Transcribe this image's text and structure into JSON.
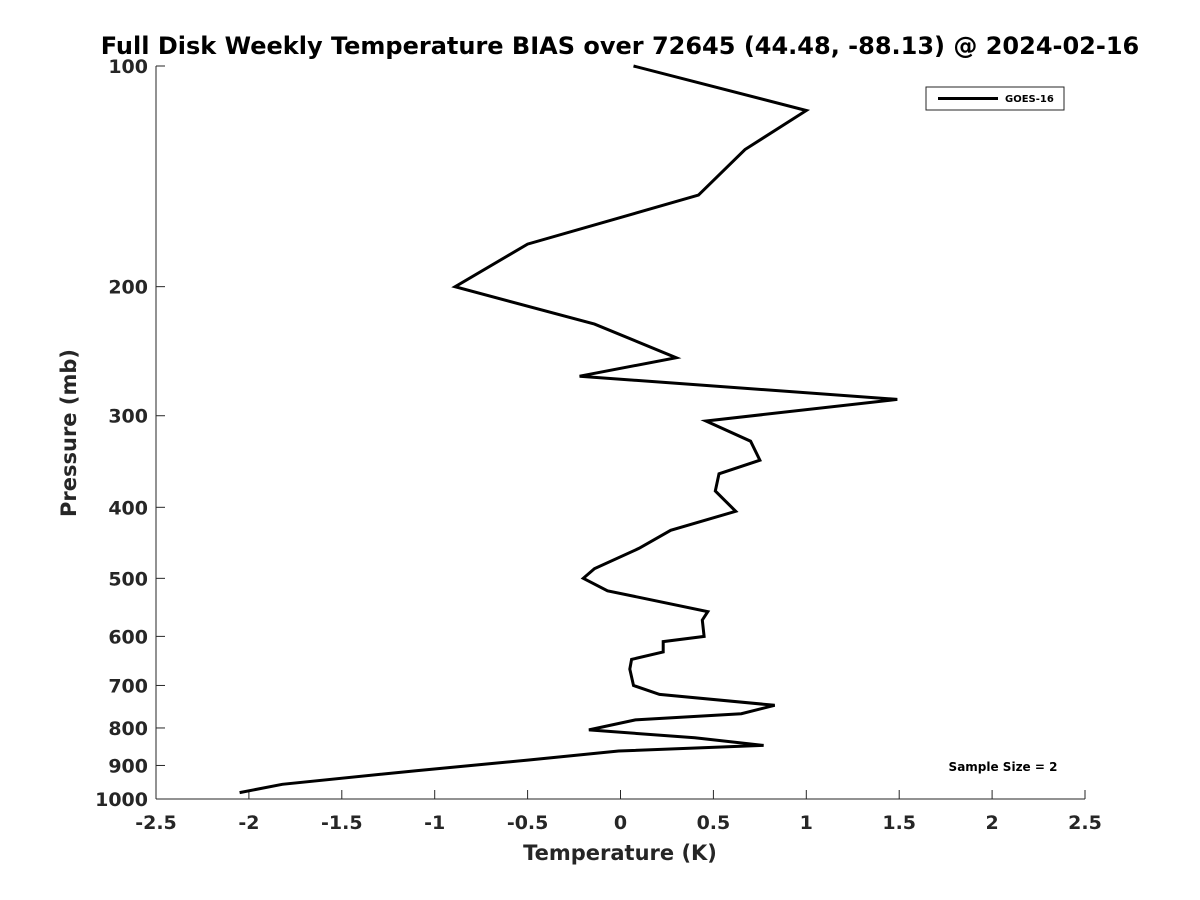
{
  "chart_data": {
    "type": "line",
    "title": "Full Disk Weekly Temperature BIAS over 72645 (44.48, -88.13) @ 2024-02-16",
    "xlabel": "Temperature (K)",
    "ylabel": "Pressure (mb)",
    "xlim": [
      -2.5,
      2.5
    ],
    "ylim": [
      100,
      1000
    ],
    "y_scale": "log",
    "y_reversed": true,
    "x_ticks": [
      -2.5,
      -2,
      -1.5,
      -1,
      -0.5,
      0,
      0.5,
      1,
      1.5,
      2,
      2.5
    ],
    "x_tick_labels": [
      "-2.5",
      "-2",
      "-1.5",
      "-1",
      "-0.5",
      "0",
      "0.5",
      "1",
      "1.5",
      "2",
      "2.5"
    ],
    "y_ticks": [
      100,
      200,
      300,
      400,
      500,
      600,
      700,
      800,
      900,
      1000
    ],
    "y_tick_labels": [
      "100",
      "200",
      "300",
      "400",
      "500",
      "600",
      "700",
      "800",
      "900",
      "1000"
    ],
    "grid": false,
    "legend_position": "top-right",
    "series": [
      {
        "name": "GOES-16",
        "color": "#000000",
        "points": [
          {
            "x": 0.07,
            "p": 100
          },
          {
            "x": 1.0,
            "p": 115
          },
          {
            "x": 0.67,
            "p": 130
          },
          {
            "x": 0.42,
            "p": 150
          },
          {
            "x": -0.5,
            "p": 175
          },
          {
            "x": -0.89,
            "p": 200
          },
          {
            "x": -0.14,
            "p": 225
          },
          {
            "x": 0.3,
            "p": 250
          },
          {
            "x": -0.22,
            "p": 265
          },
          {
            "x": 1.49,
            "p": 285
          },
          {
            "x": 0.46,
            "p": 305
          },
          {
            "x": 0.7,
            "p": 325
          },
          {
            "x": 0.75,
            "p": 345
          },
          {
            "x": 0.53,
            "p": 360
          },
          {
            "x": 0.51,
            "p": 380
          },
          {
            "x": 0.62,
            "p": 405
          },
          {
            "x": 0.27,
            "p": 430
          },
          {
            "x": 0.1,
            "p": 455
          },
          {
            "x": -0.14,
            "p": 485
          },
          {
            "x": -0.2,
            "p": 500
          },
          {
            "x": -0.07,
            "p": 520
          },
          {
            "x": 0.47,
            "p": 555
          },
          {
            "x": 0.44,
            "p": 570
          },
          {
            "x": 0.45,
            "p": 600
          },
          {
            "x": 0.23,
            "p": 610
          },
          {
            "x": 0.23,
            "p": 630
          },
          {
            "x": 0.06,
            "p": 645
          },
          {
            "x": 0.05,
            "p": 665
          },
          {
            "x": 0.07,
            "p": 700
          },
          {
            "x": 0.21,
            "p": 720
          },
          {
            "x": 0.83,
            "p": 745
          },
          {
            "x": 0.65,
            "p": 765
          },
          {
            "x": 0.08,
            "p": 780
          },
          {
            "x": -0.17,
            "p": 805
          },
          {
            "x": 0.4,
            "p": 825
          },
          {
            "x": 0.77,
            "p": 845
          },
          {
            "x": -0.01,
            "p": 860
          },
          {
            "x": -0.5,
            "p": 885
          },
          {
            "x": -1.1,
            "p": 915
          },
          {
            "x": -1.82,
            "p": 955
          },
          {
            "x": -2.05,
            "p": 980
          }
        ]
      }
    ],
    "annotations": [
      "Sample Size = 2"
    ]
  }
}
